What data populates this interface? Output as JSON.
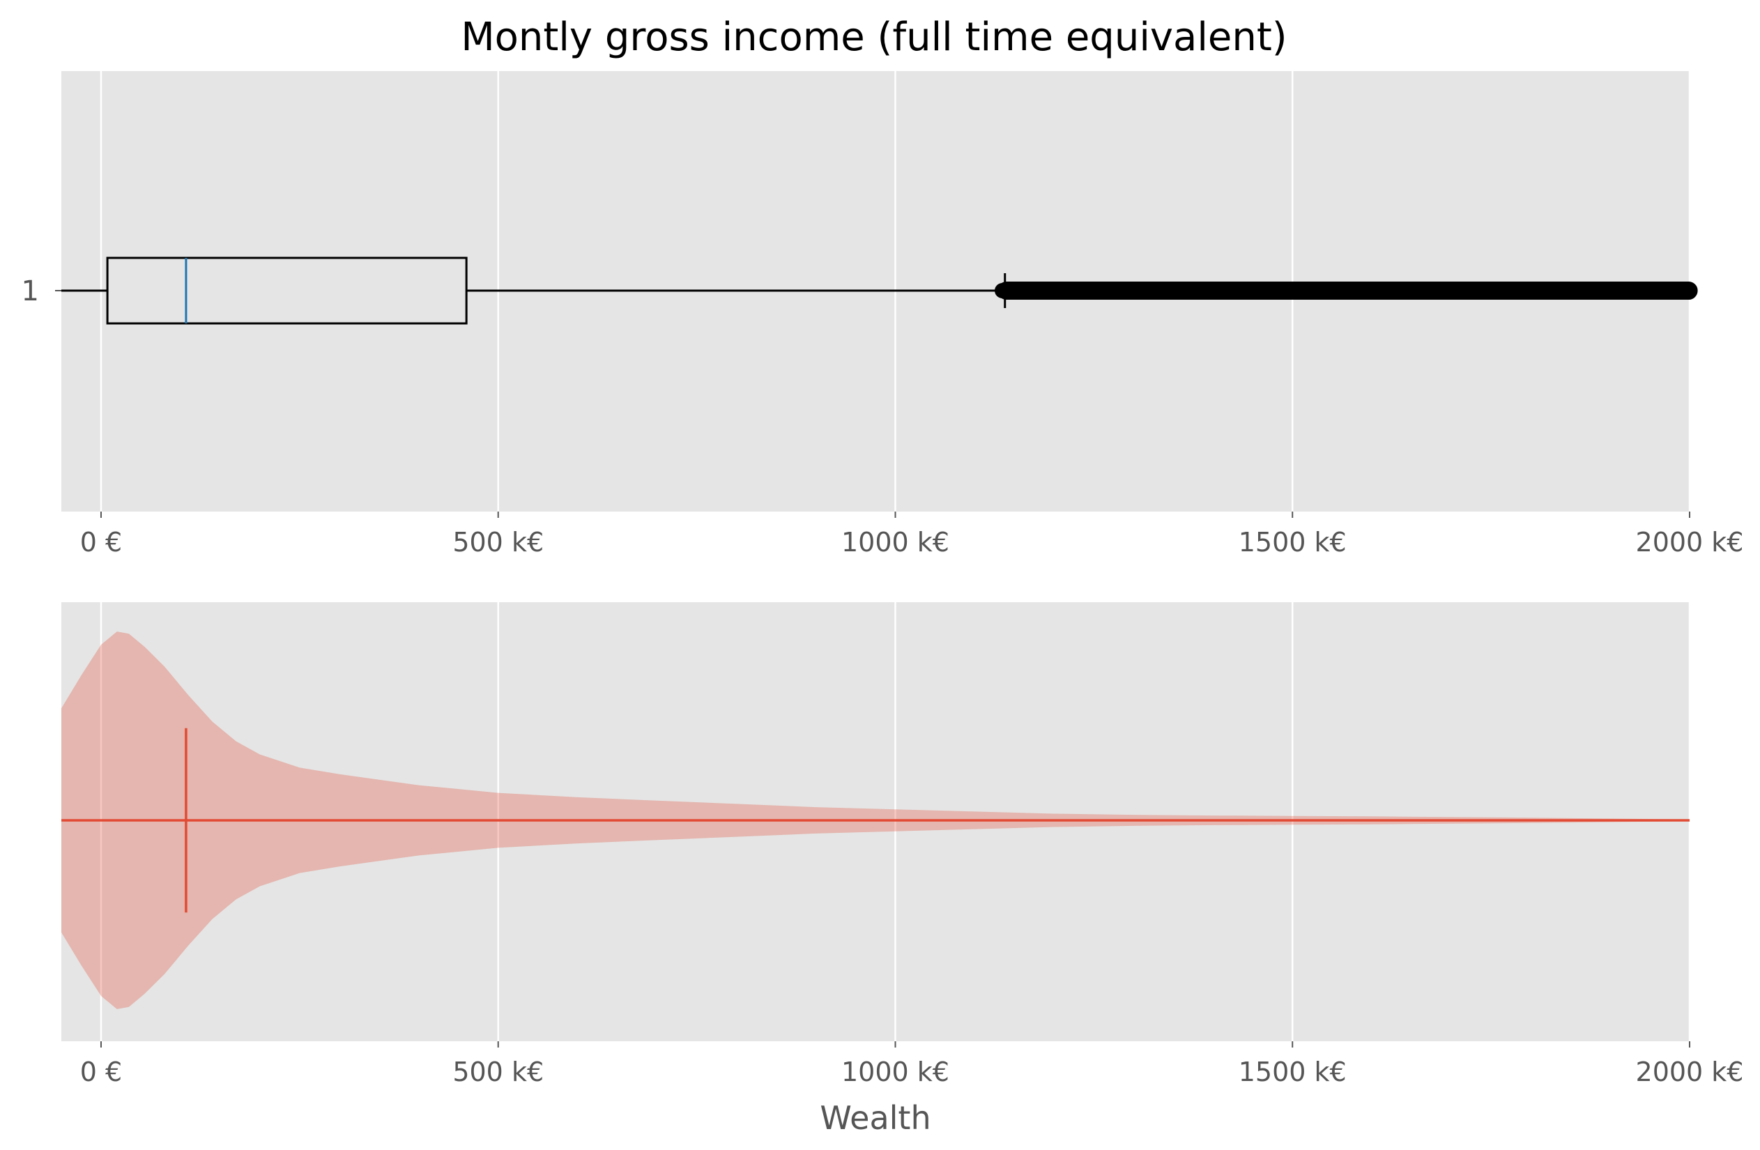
{
  "chart_data": {
    "type": "box+violin",
    "title": "Montly gross income (full time equivalent)",
    "xlabel": "Wealth",
    "xlim": [
      -50,
      2000
    ],
    "x_ticks": [
      0,
      500,
      1000,
      1500,
      2000
    ],
    "x_tick_labels": [
      "0 €",
      "500 k€",
      "1000 k€",
      "1500 k€",
      "2000 k€"
    ],
    "grid": true,
    "colors": {
      "panel_bg": "#E5E5E5",
      "grid": "#FFFFFF",
      "box": "#000000",
      "median": "#1F77B4",
      "violin": "#E24A33"
    },
    "boxplot": {
      "y_tick_labels": [
        "1"
      ],
      "whisker_low": -50,
      "q1": 8,
      "median": 107,
      "q3": 460,
      "whisker_high": 1138,
      "outliers_from": 1140,
      "outliers_to": 2000
    },
    "violin": {
      "median": 107,
      "median_extent": 0.42,
      "density": [
        [
          -50,
          0.51
        ],
        [
          -25,
          0.66
        ],
        [
          0,
          0.8
        ],
        [
          20,
          0.86
        ],
        [
          35,
          0.85
        ],
        [
          55,
          0.79
        ],
        [
          80,
          0.7
        ],
        [
          110,
          0.57
        ],
        [
          140,
          0.45
        ],
        [
          170,
          0.36
        ],
        [
          200,
          0.3
        ],
        [
          250,
          0.24
        ],
        [
          300,
          0.21
        ],
        [
          400,
          0.16
        ],
        [
          500,
          0.125
        ],
        [
          600,
          0.105
        ],
        [
          700,
          0.09
        ],
        [
          800,
          0.075
        ],
        [
          900,
          0.06
        ],
        [
          1000,
          0.05
        ],
        [
          1100,
          0.04
        ],
        [
          1200,
          0.03
        ],
        [
          1300,
          0.025
        ],
        [
          1400,
          0.022
        ],
        [
          1500,
          0.02
        ],
        [
          1600,
          0.018
        ],
        [
          1700,
          0.015
        ],
        [
          1800,
          0.012
        ],
        [
          1900,
          0.008
        ],
        [
          2000,
          0.004
        ]
      ]
    }
  }
}
